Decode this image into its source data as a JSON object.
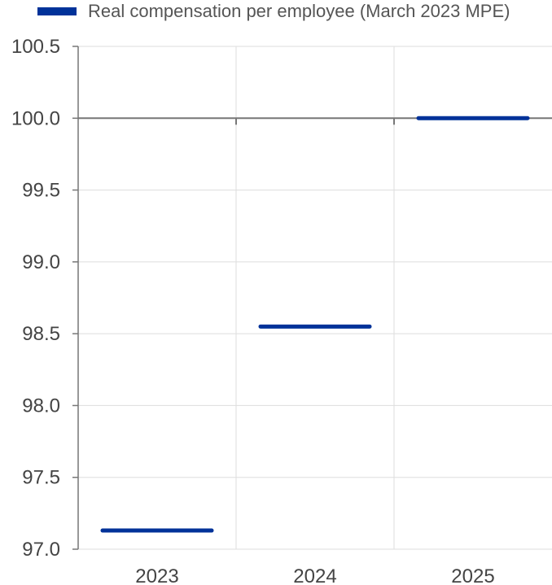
{
  "chart_data": {
    "type": "line",
    "categories": [
      "2023",
      "2024",
      "2025"
    ],
    "series": [
      {
        "name": "Real compensation per employee (March 2023 MPE)",
        "values": [
          97.13,
          98.55,
          100.0
        ],
        "color": "#003299"
      }
    ],
    "ylim": [
      97.0,
      100.5
    ],
    "yticks": [
      "97.0",
      "97.5",
      "98.0",
      "98.5",
      "99.0",
      "99.5",
      "100.0",
      "100.5"
    ],
    "reference_line": 100.0,
    "grid": true,
    "legend": "top"
  }
}
